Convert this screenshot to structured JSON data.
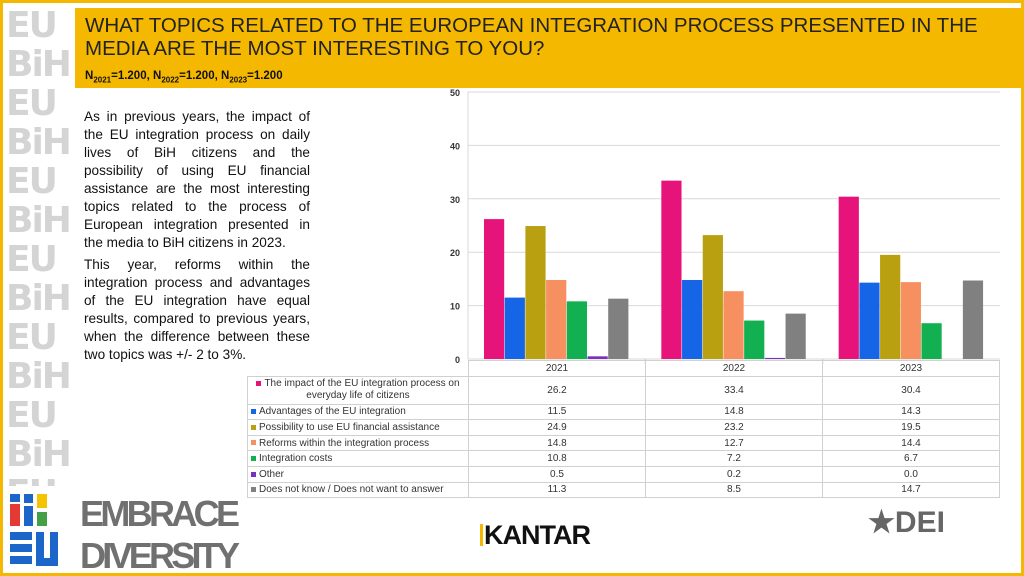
{
  "header": {
    "title": "WHAT TOPICS RELATED TO THE EUROPEAN INTEGRATION PROCESS PRESENTED IN THE MEDIA  ARE THE MOST INTERESTING TO YOU?",
    "sample": [
      {
        "label": "N",
        "sub": "2021",
        "value": "=1.200, "
      },
      {
        "label": "N",
        "sub": "2022",
        "value": "=1.200, "
      },
      {
        "label": "N",
        "sub": "2023",
        "value": "=1.200"
      }
    ]
  },
  "body": {
    "p1": "As in previous years, the impact of the EU integration process on daily lives of BiH citizens and the possibility of using EU financial assistance are the most interesting topics related to the process of European integration presented in the media to BiH citizens in 2023.",
    "p2": "This year, reforms within the integration process and advantages of the EU integration have equal results, compared to previous years, when the difference between these two topics was +/- 2 to 3%."
  },
  "chart_data": {
    "type": "bar",
    "categories": [
      "2021",
      "2022",
      "2023"
    ],
    "ylim": [
      0,
      50
    ],
    "yticks": [
      "0",
      "10",
      "20",
      "30",
      "40",
      "50"
    ],
    "grid": true,
    "legend": "table-below",
    "series": [
      {
        "name": "The impact of the EU integration process on everyday life of citizens",
        "color": "#e6137b",
        "values": [
          26.2,
          33.4,
          30.4
        ]
      },
      {
        "name": "Advantages of the EU integration",
        "color": "#1565e6",
        "values": [
          11.5,
          14.8,
          14.3
        ]
      },
      {
        "name": "Possibility to use EU financial assistance",
        "color": "#b8a010",
        "values": [
          24.9,
          23.2,
          19.5
        ]
      },
      {
        "name": "Reforms within the integration process",
        "color": "#f79060",
        "values": [
          14.8,
          12.7,
          14.4
        ]
      },
      {
        "name": "Integration costs",
        "color": "#12b050",
        "values": [
          10.8,
          7.2,
          6.7
        ]
      },
      {
        "name": "Other",
        "color": "#7b2fbf",
        "values": [
          0.5,
          0.2,
          0.0
        ]
      },
      {
        "name": "Does not know / Does not want to answer",
        "color": "#808080",
        "values": [
          11.3,
          8.5,
          14.7
        ]
      }
    ],
    "table_values": [
      [
        "26.2",
        "33.4",
        "30.4"
      ],
      [
        "11.5",
        "14.8",
        "14.3"
      ],
      [
        "24.9",
        "23.2",
        "19.5"
      ],
      [
        "14.8",
        "12.7",
        "14.4"
      ],
      [
        "10.8",
        "7.2",
        "6.7"
      ],
      [
        "0.5",
        "0.2",
        "0.0"
      ],
      [
        "11.3",
        "8.5",
        "14.7"
      ]
    ]
  },
  "logos": {
    "embrace": "EMBRACE DIVERSITY",
    "embrace_mark": "BiH EU",
    "kantar": "KANTAR",
    "dei": "DEI"
  },
  "pattern": "EU BiH"
}
